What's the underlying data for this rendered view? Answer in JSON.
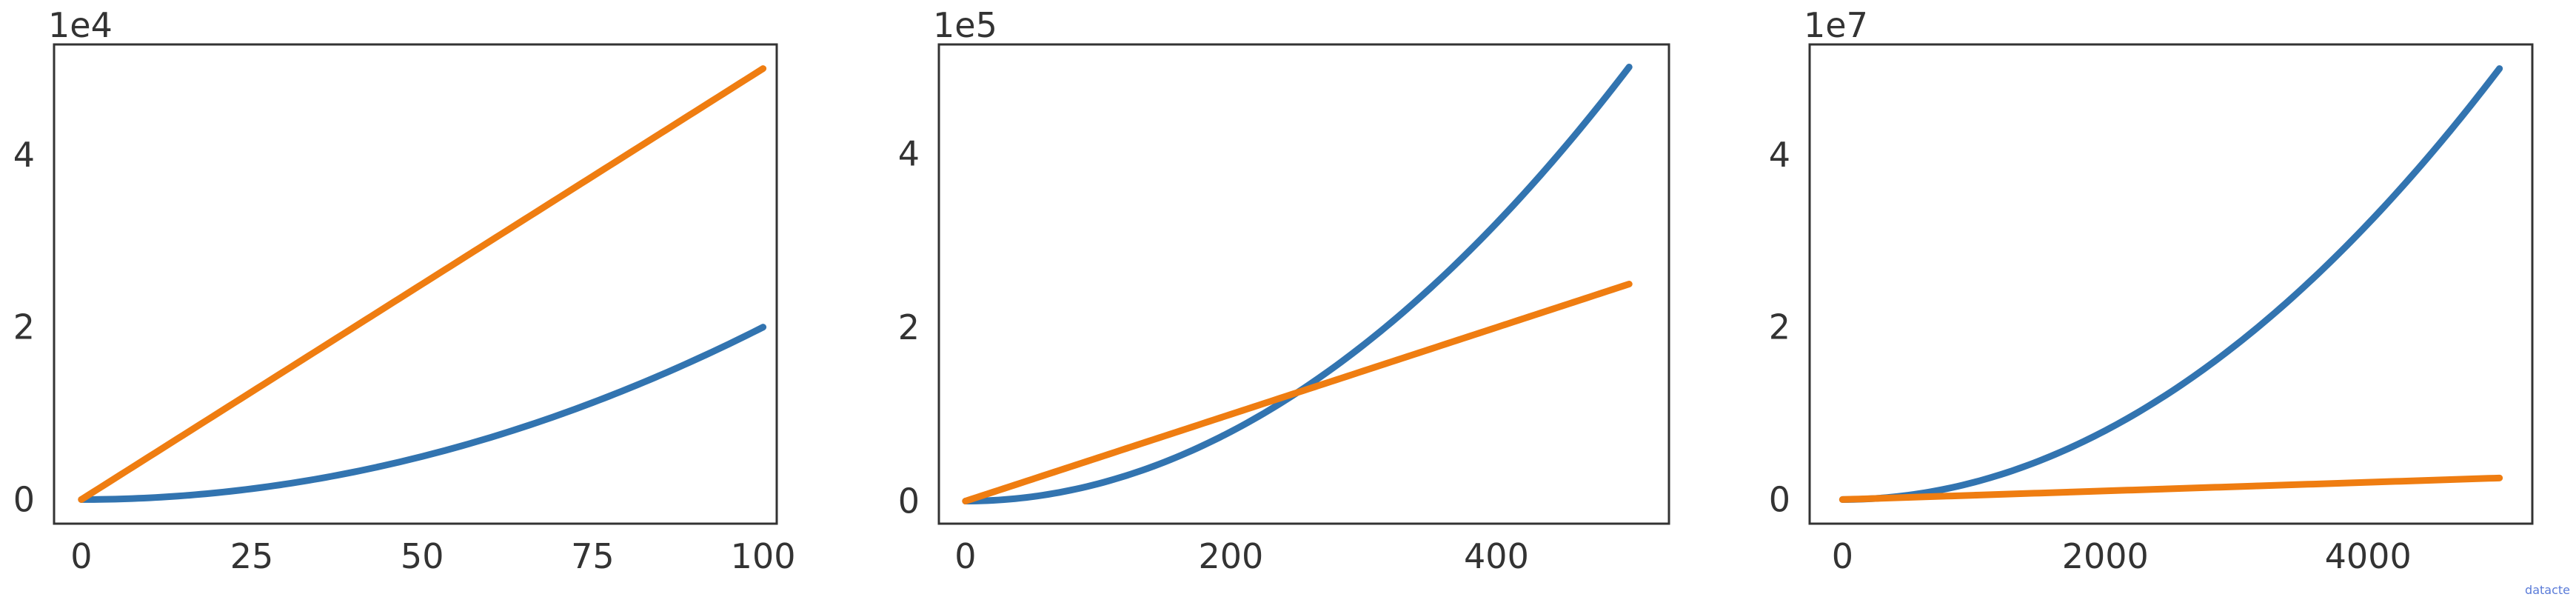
{
  "colors": {
    "series_a": "#3274b0",
    "series_b": "#ef7d11",
    "axis": "#333333",
    "text": "#333333"
  },
  "chart_data": [
    {
      "type": "line",
      "offset_label": "1e4",
      "xlim": [
        -4,
        102
      ],
      "ylim": [
        -0.28,
        5.28
      ],
      "x_ticks": [
        0,
        25,
        50,
        75,
        100
      ],
      "x_tick_labels": [
        "0",
        "25",
        "50",
        "75",
        "100"
      ],
      "y_ticks": [
        0,
        2,
        4
      ],
      "y_tick_labels": [
        "0",
        "2",
        "4"
      ],
      "grid": false,
      "x_range": [
        0,
        100
      ],
      "series": [
        {
          "color_key": "series_a",
          "y_scaled": {
            "formula": "2*x^2 / 1e4"
          },
          "y_end": 2.0
        },
        {
          "color_key": "series_b",
          "y_scaled": {
            "formula": "500*x / 1e4"
          },
          "y_end": 5.0
        }
      ]
    },
    {
      "type": "line",
      "offset_label": "1e5",
      "xlim": [
        -20,
        530
      ],
      "ylim": [
        -0.26,
        5.26
      ],
      "x_ticks": [
        0,
        200,
        400
      ],
      "x_tick_labels": [
        "0",
        "200",
        "400"
      ],
      "y_ticks": [
        0,
        2,
        4
      ],
      "y_tick_labels": [
        "0",
        "2",
        "4"
      ],
      "grid": false,
      "x_range": [
        0,
        500
      ],
      "series": [
        {
          "color_key": "series_a",
          "y_scaled": {
            "formula": "2*x^2 / 1e5"
          },
          "y_end": 5.0
        },
        {
          "color_key": "series_b",
          "y_scaled": {
            "formula": "500*x / 1e5"
          },
          "y_end": 2.5
        }
      ]
    },
    {
      "type": "line",
      "offset_label": "1e7",
      "xlim": [
        -250,
        5250
      ],
      "ylim": [
        -0.28,
        5.28
      ],
      "x_ticks": [
        0,
        2000,
        4000
      ],
      "x_tick_labels": [
        "0",
        "2000",
        "4000"
      ],
      "y_ticks": [
        0,
        2,
        4
      ],
      "y_tick_labels": [
        "0",
        "2",
        "4"
      ],
      "grid": false,
      "x_range": [
        0,
        5000
      ],
      "series": [
        {
          "color_key": "series_a",
          "y_scaled": {
            "formula": "2*x^2 / 1e7"
          },
          "y_end": 5.0
        },
        {
          "color_key": "series_b",
          "y_scaled": {
            "formula": "500*x / 1e7"
          },
          "y_end": 0.25
        }
      ]
    }
  ],
  "watermark": "datacte"
}
